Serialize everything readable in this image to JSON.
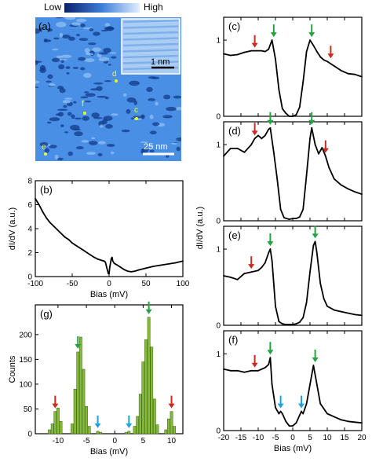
{
  "colorbar": {
    "low_label": "Low",
    "high_label": "High"
  },
  "panel_a": {
    "label": "(a)",
    "inset_scale": "1 nm",
    "main_scale": "25 nm",
    "markers": [
      {
        "label": "c"
      },
      {
        "label": "d"
      },
      {
        "label": "e"
      },
      {
        "label": "f"
      }
    ]
  },
  "chart_data": [
    {
      "id": "b",
      "type": "line",
      "label": "(b)",
      "xlabel": "Bias (mV)",
      "ylabel": "dI/dV (a.u.)",
      "xlim": [
        -100,
        100
      ],
      "ylim": [
        0,
        8
      ],
      "xticks": [
        "-100",
        "-50",
        "0",
        "50",
        "100"
      ],
      "yticks": [
        "0",
        "2",
        "4",
        "6",
        "8"
      ],
      "x": [
        -100,
        -95,
        -90,
        -85,
        -80,
        -75,
        -70,
        -65,
        -60,
        -55,
        -50,
        -45,
        -40,
        -35,
        -30,
        -25,
        -20,
        -15,
        -10,
        -7,
        -5,
        -3,
        -1,
        0,
        1,
        3,
        4,
        5,
        7,
        10,
        15,
        20,
        25,
        30,
        35,
        40,
        50,
        60,
        70,
        80,
        90,
        100
      ],
      "y": [
        6.5,
        6.0,
        5.4,
        4.9,
        4.5,
        4.2,
        3.9,
        3.6,
        3.3,
        3.1,
        2.8,
        2.6,
        2.4,
        2.2,
        2.0,
        1.8,
        1.6,
        1.45,
        1.35,
        1.3,
        1.2,
        0.7,
        0.25,
        0.25,
        0.8,
        1.5,
        1.6,
        1.3,
        1.1,
        1.0,
        0.8,
        0.6,
        0.45,
        0.4,
        0.45,
        0.55,
        0.7,
        0.85,
        0.95,
        1.05,
        1.15,
        1.3
      ]
    },
    {
      "id": "c",
      "type": "line",
      "label": "(c)",
      "xlim": [
        -20,
        20
      ],
      "ylim": [
        0,
        1.3
      ],
      "yticks": [
        "0",
        "1"
      ],
      "x": [
        -20,
        -18,
        -16,
        -14,
        -12,
        -10,
        -9,
        -8,
        -7,
        -6,
        -5,
        -4,
        -3,
        -2,
        -1,
        0,
        1,
        2,
        3,
        4,
        5,
        6,
        7,
        8,
        9,
        10,
        12,
        14,
        16,
        18,
        20
      ],
      "y": [
        0.82,
        0.8,
        0.81,
        0.84,
        0.86,
        0.86,
        0.86,
        0.85,
        0.88,
        1.0,
        0.75,
        0.35,
        0.1,
        0.04,
        0.0,
        0.0,
        0.02,
        0.12,
        0.45,
        0.85,
        1.0,
        0.93,
        0.85,
        0.78,
        0.74,
        0.72,
        0.66,
        0.6,
        0.56,
        0.55,
        0.52
      ],
      "arrows": [
        {
          "x": -11,
          "color": "#cc2a1f"
        },
        {
          "x": -5.5,
          "color": "#25a242"
        },
        {
          "x": 5.5,
          "color": "#25a242"
        },
        {
          "x": 11,
          "color": "#cc2a1f"
        }
      ]
    },
    {
      "id": "d",
      "type": "line",
      "label": "(d)",
      "xlim": [
        -20,
        20
      ],
      "ylim": [
        0,
        1.3
      ],
      "yticks": [
        "0",
        "1"
      ],
      "x": [
        -20,
        -18,
        -16,
        -14,
        -12,
        -11,
        -10,
        -9,
        -8,
        -7,
        -6.5,
        -5.5,
        -4.5,
        -3.5,
        -2.5,
        -1,
        0,
        1,
        2,
        3,
        4,
        5,
        5.5,
        6.5,
        7.5,
        8.5,
        9.5,
        10.5,
        12,
        14,
        16,
        18,
        20
      ],
      "y": [
        0.85,
        0.95,
        0.95,
        0.9,
        1.0,
        1.08,
        1.12,
        1.08,
        1.12,
        1.2,
        1.22,
        0.9,
        0.55,
        0.15,
        0.04,
        0.02,
        0.03,
        0.03,
        0.05,
        0.15,
        0.6,
        1.08,
        1.22,
        1.0,
        0.88,
        0.96,
        0.85,
        0.7,
        0.55,
        0.47,
        0.42,
        0.38,
        0.35
      ],
      "arrows": [
        {
          "x": -11,
          "color": "#cc2a1f"
        },
        {
          "x": -6.5,
          "color": "#25a242"
        },
        {
          "x": 5.5,
          "color": "#25a242"
        },
        {
          "x": 9.5,
          "color": "#cc2a1f"
        }
      ]
    },
    {
      "id": "e",
      "type": "line",
      "label": "(e)",
      "xlim": [
        -20,
        20
      ],
      "ylim": [
        0,
        1.3
      ],
      "yticks": [
        "0",
        "1"
      ],
      "x": [
        -20,
        -18,
        -16,
        -14,
        -12,
        -10,
        -9,
        -8,
        -7,
        -6.5,
        -6,
        -5,
        -4,
        -3,
        -2,
        -1,
        0,
        1,
        2,
        3,
        4,
        5,
        6,
        6.5,
        7,
        8,
        9,
        10,
        12,
        14,
        16,
        18,
        20
      ],
      "y": [
        0.65,
        0.63,
        0.6,
        0.68,
        0.7,
        0.72,
        0.76,
        0.82,
        0.95,
        1.0,
        0.85,
        0.25,
        0.05,
        0.02,
        0.01,
        0.01,
        0.01,
        0.02,
        0.04,
        0.1,
        0.3,
        0.7,
        1.05,
        1.1,
        0.95,
        0.55,
        0.35,
        0.25,
        0.2,
        0.18,
        0.16,
        0.14,
        0.13
      ],
      "arrows": [
        {
          "x": -12,
          "color": "#cc2a1f"
        },
        {
          "x": -6.5,
          "color": "#25a242"
        },
        {
          "x": 6.5,
          "color": "#25a242"
        }
      ]
    },
    {
      "id": "f",
      "type": "line",
      "label": "(f)",
      "xlabel": "Bias (mV)",
      "xlim": [
        -20,
        20
      ],
      "ylim": [
        0,
        1.3
      ],
      "xticks": [
        "-20",
        "-15",
        "-10",
        "-5",
        "0",
        "5",
        "10",
        "15",
        "20"
      ],
      "yticks": [
        "0",
        "1"
      ],
      "x": [
        -20,
        -18,
        -16,
        -14,
        -12,
        -10,
        -9,
        -8,
        -7,
        -6.5,
        -6,
        -5,
        -4,
        -3.5,
        -3,
        -2,
        -1,
        0,
        1,
        2,
        2.5,
        3,
        4,
        5,
        6,
        7,
        8,
        10,
        12,
        14,
        16,
        18,
        20
      ],
      "y": [
        0.8,
        0.78,
        0.78,
        0.76,
        0.78,
        0.78,
        0.8,
        0.82,
        0.86,
        0.95,
        0.6,
        0.3,
        0.22,
        0.25,
        0.22,
        0.12,
        0.06,
        0.06,
        0.1,
        0.2,
        0.25,
        0.22,
        0.35,
        0.6,
        0.85,
        0.6,
        0.35,
        0.22,
        0.18,
        0.14,
        0.12,
        0.11,
        0.1
      ],
      "arrows": [
        {
          "x": -11,
          "color": "#cc2a1f"
        },
        {
          "x": -6.5,
          "color": "#25a242"
        },
        {
          "x": -3.5,
          "color": "#1fa3dd"
        },
        {
          "x": 2.5,
          "color": "#1fa3dd"
        },
        {
          "x": 6.5,
          "color": "#25a242"
        }
      ]
    },
    {
      "id": "g",
      "type": "bar",
      "label": "(g)",
      "xlabel": "Bias (mV)",
      "ylabel": "Counts",
      "xlim": [
        -14,
        12
      ],
      "ylim": [
        0,
        260
      ],
      "xticks": [
        "-10",
        "-5",
        "0",
        "5",
        "10"
      ],
      "yticks": [
        "0",
        "50",
        "100",
        "150",
        "200"
      ],
      "bar_color": "#84bb3a",
      "x": [
        -11.5,
        -11.0,
        -10.5,
        -10.0,
        -9.5,
        -7.5,
        -7.0,
        -6.5,
        -6.0,
        -5.5,
        -5.0,
        -4.5,
        -3.0,
        -2.5,
        2.0,
        2.5,
        3.5,
        4.0,
        4.5,
        5.0,
        5.5,
        6.0,
        6.5,
        7.0,
        7.5,
        9.0,
        9.5,
        10.0,
        10.5
      ],
      "values": [
        8,
        20,
        45,
        52,
        25,
        20,
        90,
        165,
        195,
        130,
        55,
        15,
        5,
        3,
        3,
        5,
        15,
        35,
        80,
        145,
        190,
        235,
        175,
        70,
        18,
        8,
        30,
        45,
        15
      ],
      "arrows": [
        {
          "x": -10.5,
          "color": "#cc2a1f"
        },
        {
          "x": -6.5,
          "color": "#25a242"
        },
        {
          "x": -3.0,
          "color": "#1fa3dd"
        },
        {
          "x": 2.5,
          "color": "#1fa3dd"
        },
        {
          "x": 6.0,
          "color": "#25a242"
        },
        {
          "x": 10.0,
          "color": "#cc2a1f"
        }
      ]
    }
  ]
}
